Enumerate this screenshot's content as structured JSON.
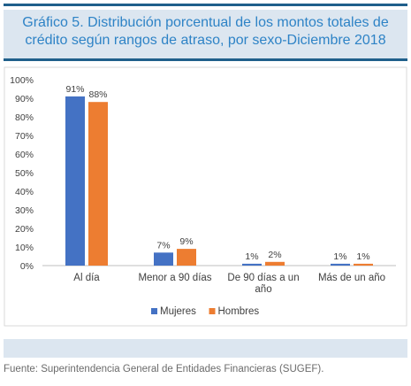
{
  "header": {
    "title": "Gráfico 5. Distribución porcentual de los montos totales de crédito según rangos de atraso, por sexo-Diciembre 2018"
  },
  "source": "Fuente: Superintendencia General de Entidades Financieras (SUGEF).",
  "colors": {
    "header_text": "#2e83c6",
    "header_band": "#dce6f0",
    "rule": "#1f5f8b",
    "mujeres": "#4472c4",
    "hombres": "#ed7d31"
  },
  "chart_data": {
    "type": "bar",
    "categories": [
      [
        "Al día"
      ],
      [
        "Menor a 90 días"
      ],
      [
        "De 90 días a un",
        "año"
      ],
      [
        "Más de un año"
      ]
    ],
    "series": [
      {
        "name": "Mujeres",
        "values": [
          0.91,
          0.07,
          0.01,
          0.01
        ],
        "labels": [
          "91%",
          "7%",
          "1%",
          "1%"
        ]
      },
      {
        "name": "Hombres",
        "values": [
          0.88,
          0.09,
          0.02,
          0.01
        ],
        "labels": [
          "88%",
          "9%",
          "2%",
          "1%"
        ]
      }
    ],
    "ylim": [
      0,
      1
    ],
    "yticks": [
      "0%",
      "10%",
      "20%",
      "30%",
      "40%",
      "50%",
      "60%",
      "70%",
      "80%",
      "90%",
      "100%"
    ],
    "grid": false,
    "legend_position": "bottom",
    "title": "",
    "xlabel": "",
    "ylabel": ""
  }
}
